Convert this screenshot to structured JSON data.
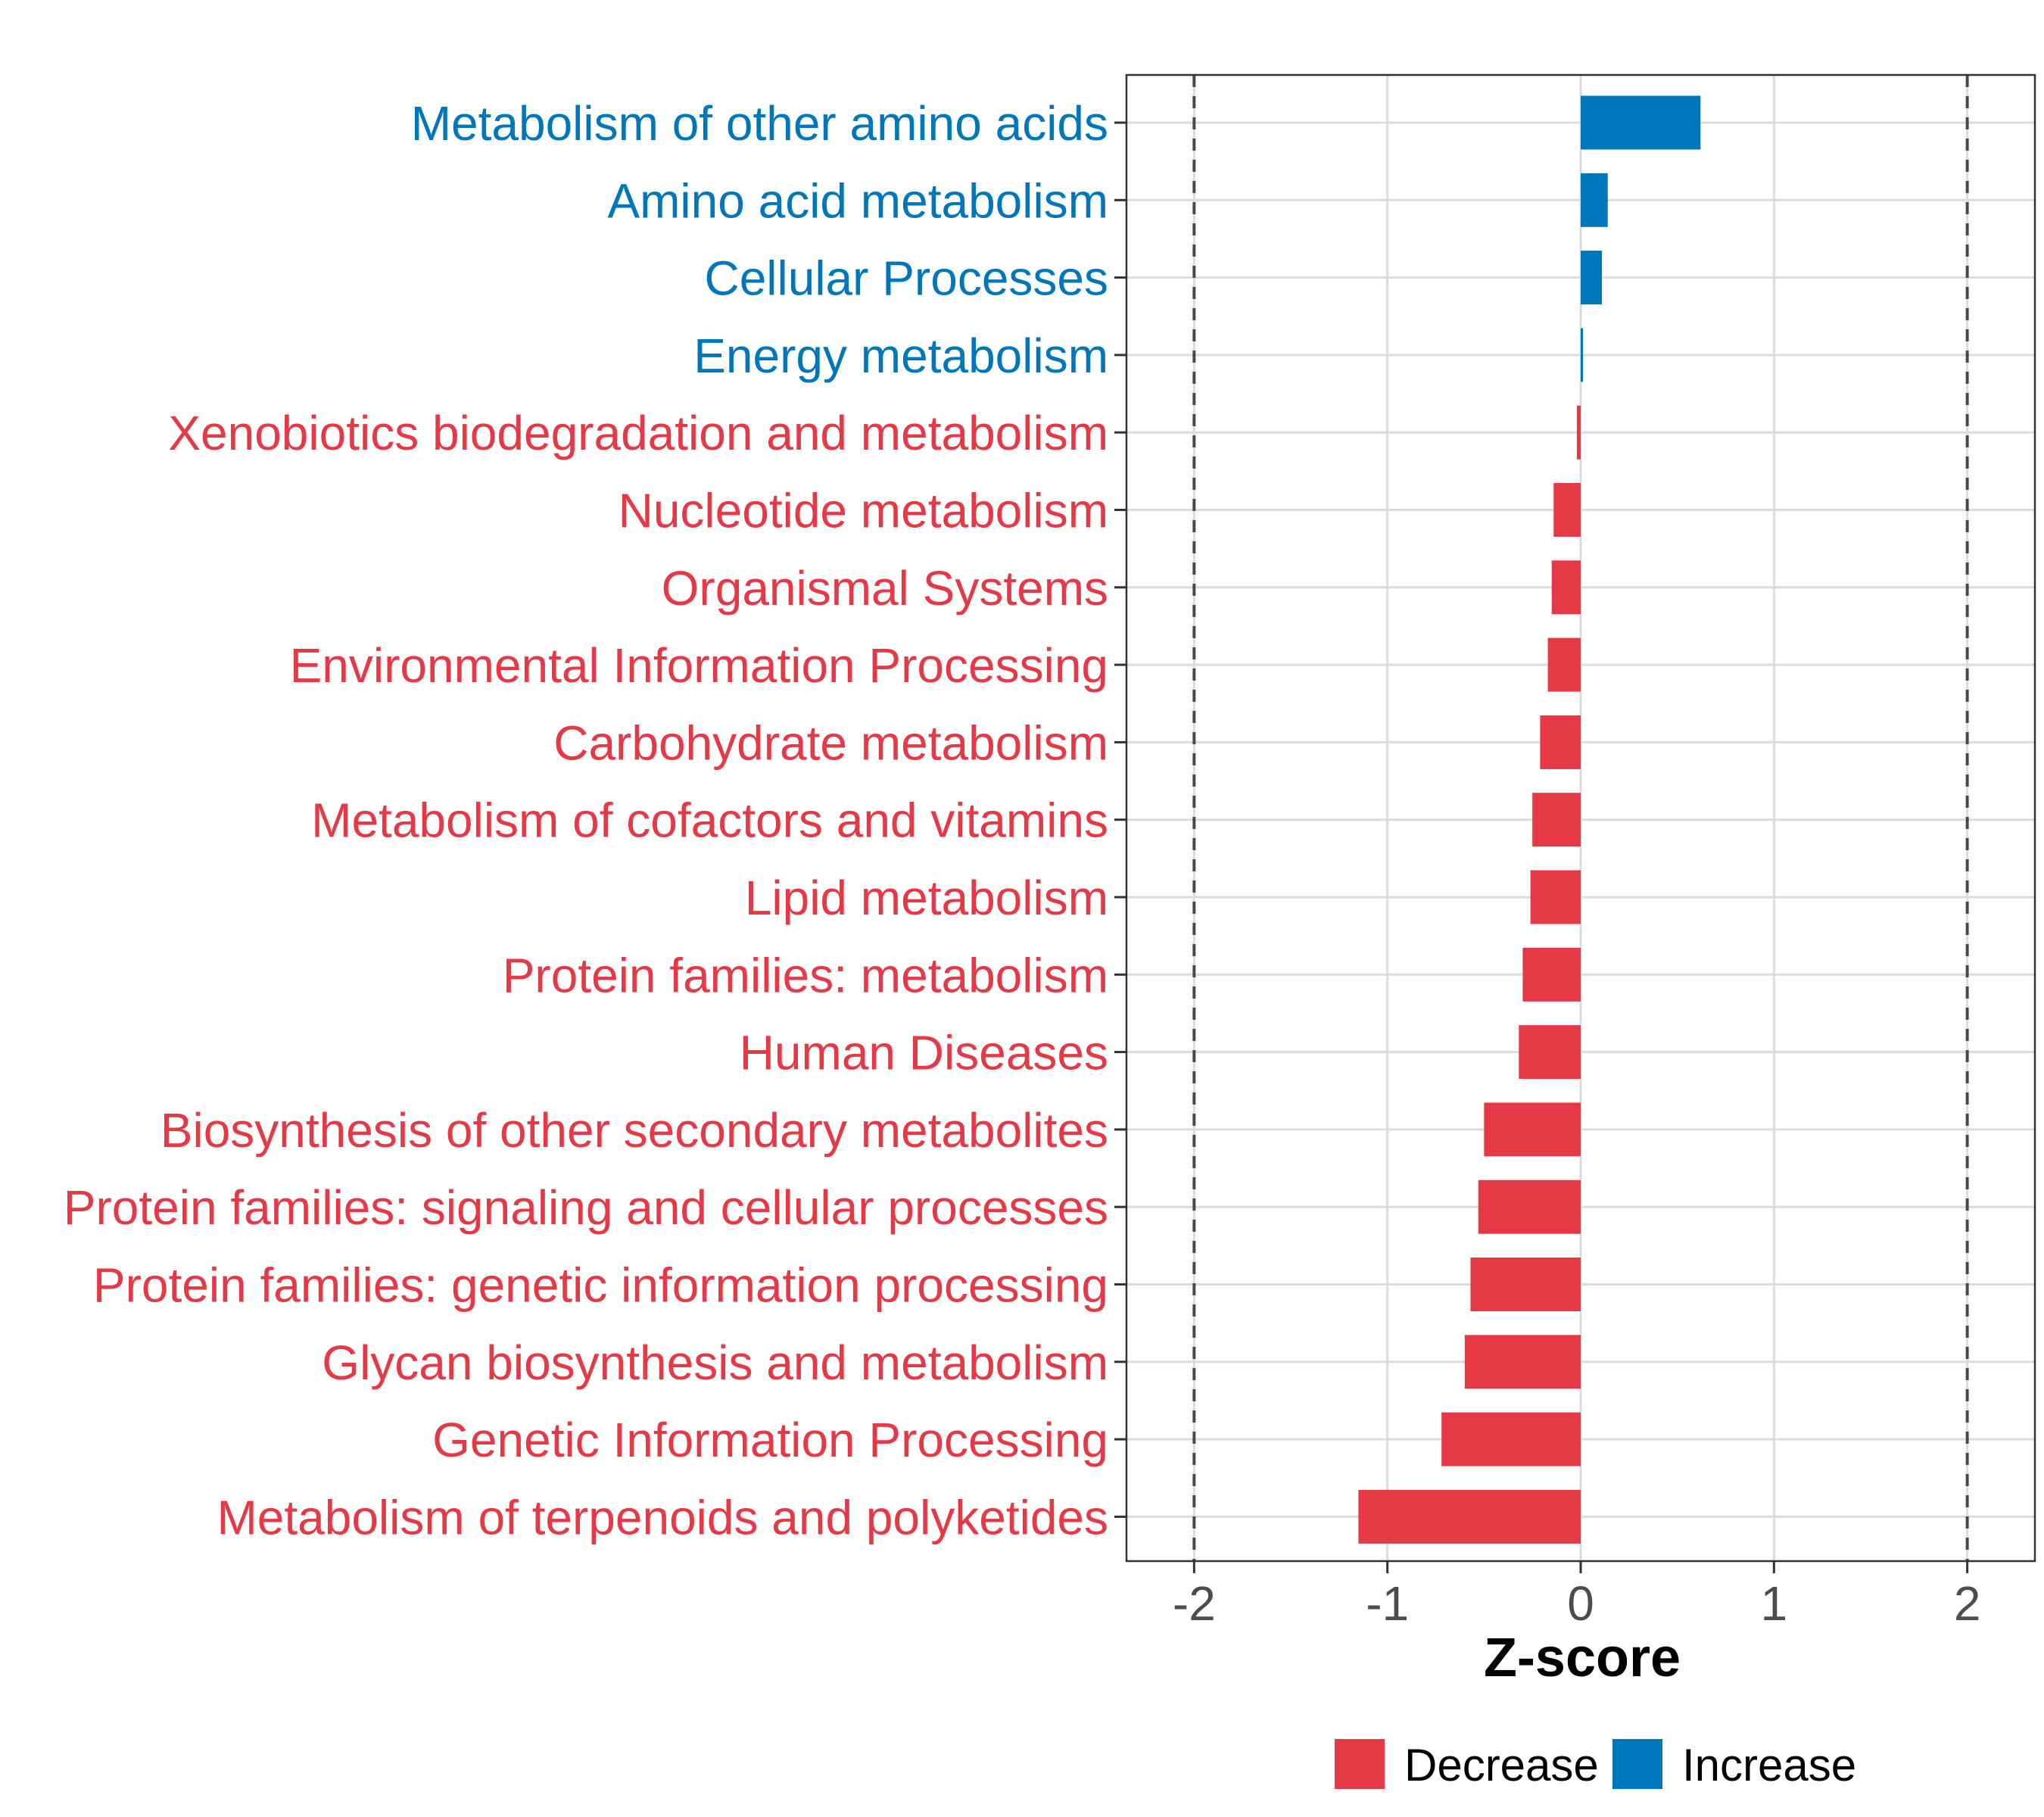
{
  "chart_data": {
    "type": "bar",
    "orientation": "horizontal",
    "xlabel": "Z-score",
    "xlim": [
      -2.35,
      2.35
    ],
    "xticks": [
      -2,
      -1,
      0,
      1,
      2
    ],
    "xtick_labels": [
      "-2",
      "-1",
      "0",
      "1",
      "2"
    ],
    "reference_lines": [
      -2,
      2
    ],
    "grid": true,
    "colors": {
      "Decrease": "#E63946",
      "Increase": "#0077BB"
    },
    "categories": [
      "Metabolism of other amino acids",
      "Amino acid metabolism",
      "Cellular Processes",
      "Energy metabolism",
      "Xenobiotics biodegradation and metabolism",
      "Nucleotide metabolism",
      "Organismal Systems",
      "Environmental Information Processing",
      "Carbohydrate metabolism",
      "Metabolism of cofactors and vitamins",
      "Lipid metabolism",
      "Protein families: metabolism",
      "Human Diseases",
      "Biosynthesis of other secondary metabolites",
      "Protein families: signaling and cellular processes",
      "Protein families: genetic information processing",
      "Glycan biosynthesis and metabolism",
      "Genetic Information Processing",
      "Metabolism of terpenoids and polyketides"
    ],
    "values": [
      0.62,
      0.14,
      0.11,
      0.01,
      -0.02,
      -0.14,
      -0.15,
      -0.17,
      -0.21,
      -0.25,
      -0.26,
      -0.3,
      -0.32,
      -0.5,
      -0.53,
      -0.57,
      -0.6,
      -0.72,
      -1.15
    ],
    "groups": [
      "Increase",
      "Increase",
      "Increase",
      "Increase",
      "Decrease",
      "Decrease",
      "Decrease",
      "Decrease",
      "Decrease",
      "Decrease",
      "Decrease",
      "Decrease",
      "Decrease",
      "Decrease",
      "Decrease",
      "Decrease",
      "Decrease",
      "Decrease",
      "Decrease"
    ],
    "legend": {
      "position": "bottom",
      "items": [
        "Decrease",
        "Increase"
      ]
    }
  }
}
